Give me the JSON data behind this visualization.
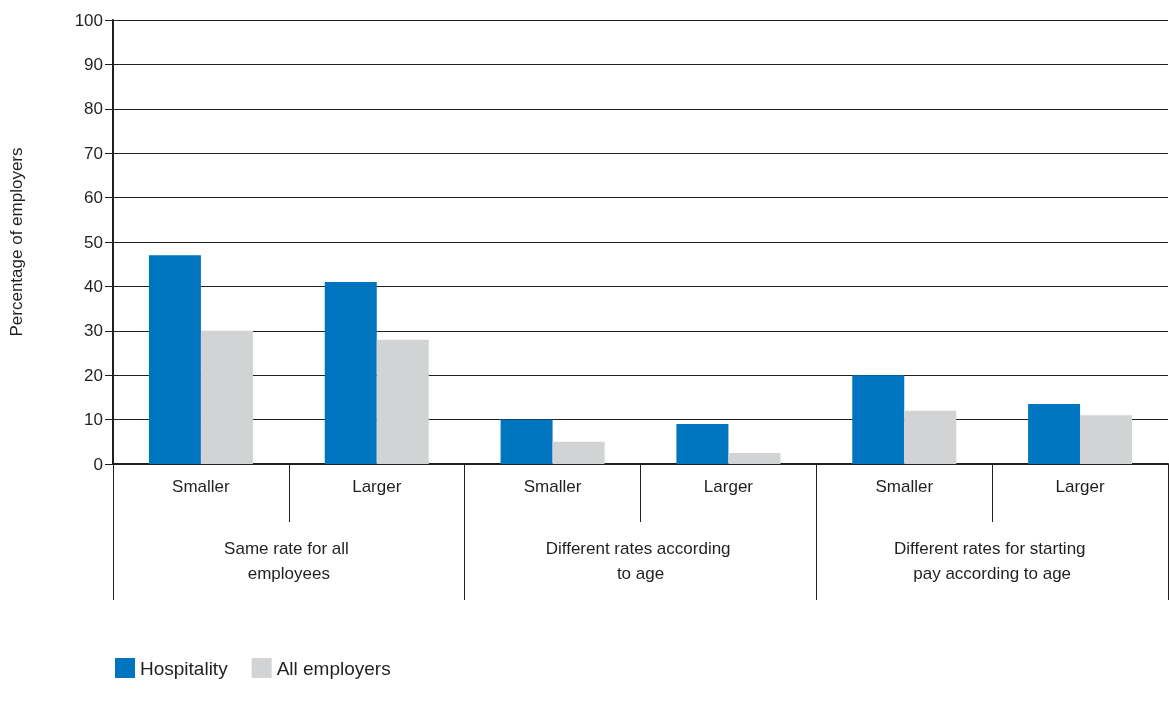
{
  "chart_data": {
    "type": "bar",
    "ylabel": "Percentage of employers",
    "categories": [
      "Smaller",
      "Larger",
      "Smaller",
      "Larger",
      "Smaller",
      "Larger"
    ],
    "series": [
      {
        "name": "Hospitality",
        "color": "#0075bf",
        "values": [
          47,
          41,
          10,
          9,
          20,
          13.5
        ]
      },
      {
        "name": "All employers",
        "color": "#d1d3d4",
        "values": [
          30,
          28,
          5,
          2.5,
          12,
          11
        ]
      }
    ],
    "annotations": [
      "Same rate for all employees",
      "Different rates according to age",
      "Different rates for starting pay according to age"
    ],
    "ylim": [
      0,
      100
    ],
    "yticks": [
      0,
      10,
      20,
      30,
      40,
      50,
      60,
      70,
      80,
      90,
      100
    ],
    "grid": "y",
    "legend": "bottom left"
  }
}
